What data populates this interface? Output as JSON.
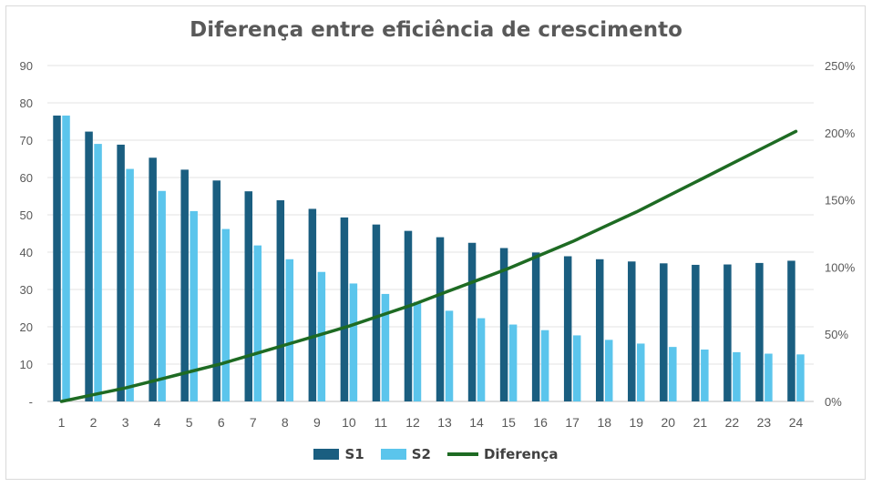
{
  "chart_data": {
    "type": "bar",
    "title": "Diferença entre eficiência de crescimento",
    "categories": [
      "1",
      "2",
      "3",
      "4",
      "5",
      "6",
      "7",
      "8",
      "9",
      "10",
      "11",
      "12",
      "13",
      "14",
      "15",
      "16",
      "17",
      "18",
      "19",
      "20",
      "21",
      "22",
      "23",
      "24"
    ],
    "series": [
      {
        "name": "S1",
        "color": "#1a5e80",
        "axis": "left",
        "kind": "bar",
        "values": [
          76.6,
          72.3,
          68.8,
          65.3,
          62.1,
          59.2,
          56.3,
          53.9,
          51.6,
          49.3,
          47.4,
          45.7,
          44.0,
          42.5,
          41.1,
          39.9,
          38.9,
          38.1,
          37.5,
          37.0,
          36.6,
          36.7,
          37.1,
          37.7
        ]
      },
      {
        "name": "S2",
        "color": "#5bc5ec",
        "axis": "left",
        "kind": "bar",
        "values": [
          76.6,
          69.0,
          62.3,
          56.4,
          51.0,
          46.2,
          41.8,
          38.1,
          34.7,
          31.6,
          28.8,
          26.7,
          24.3,
          22.3,
          20.6,
          19.1,
          17.7,
          16.5,
          15.5,
          14.6,
          13.9,
          13.2,
          12.8,
          12.6
        ]
      },
      {
        "name": "Diferença",
        "color": "#1e6b23",
        "axis": "right",
        "kind": "line",
        "values": [
          0,
          5,
          10,
          16,
          22,
          28,
          35,
          42,
          49,
          56,
          64,
          72,
          81,
          90,
          99,
          109,
          119,
          130,
          141,
          153,
          165,
          177,
          189,
          201
        ]
      }
    ],
    "y_left": {
      "min": 0,
      "max": 90,
      "step": 10,
      "tick_labels": [
        "-",
        "10",
        "20",
        "30",
        "40",
        "50",
        "60",
        "70",
        "80",
        "90"
      ]
    },
    "y_right": {
      "min": 0,
      "max": 250,
      "step": 50,
      "tick_labels": [
        "0%",
        "50%",
        "100%",
        "150%",
        "200%",
        "250%"
      ]
    },
    "grid": true,
    "legend_position": "bottom"
  }
}
